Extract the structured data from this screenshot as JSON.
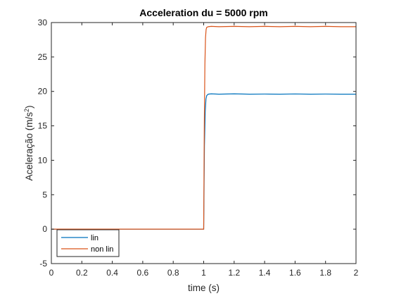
{
  "chart_data": {
    "type": "line",
    "title": "Acceleration du = 5000 rpm",
    "xlabel": "time (s)",
    "ylabel_prefix": "Aceleração (m/s",
    "ylabel_sup": "2",
    "ylabel_suffix": ")",
    "xlim": [
      0,
      2
    ],
    "ylim": [
      -5,
      30
    ],
    "xticks": [
      0,
      0.2,
      0.4,
      0.6,
      0.8,
      1,
      1.2,
      1.4,
      1.6,
      1.8,
      2
    ],
    "xtick_labels": [
      "0",
      "0.2",
      "0.4",
      "0.6",
      "0.8",
      "1",
      "1.2",
      "1.4",
      "1.6",
      "1.8",
      "2"
    ],
    "yticks": [
      -5,
      0,
      5,
      10,
      15,
      20,
      25,
      30
    ],
    "ytick_labels": [
      "-5",
      "0",
      "5",
      "10",
      "15",
      "20",
      "25",
      "30"
    ],
    "grid": false,
    "legend_position": "bottom-left",
    "series": [
      {
        "name": "lin",
        "color": "#0072BD",
        "x": [
          0,
          1.0,
          1.005,
          1.01,
          1.015,
          1.02,
          1.03,
          1.05,
          1.1,
          1.2,
          1.3,
          1.4,
          1.5,
          1.6,
          1.7,
          1.8,
          1.9,
          2.0
        ],
        "y": [
          0,
          0,
          12,
          17,
          18.9,
          19.4,
          19.6,
          19.65,
          19.6,
          19.65,
          19.6,
          19.62,
          19.6,
          19.63,
          19.6,
          19.62,
          19.6,
          19.6
        ]
      },
      {
        "name": "non lin",
        "color": "#D95319",
        "x": [
          0,
          1.0,
          1.004,
          1.008,
          1.012,
          1.016,
          1.02,
          1.03,
          1.05,
          1.1,
          1.2,
          1.3,
          1.4,
          1.5,
          1.6,
          1.7,
          1.8,
          1.9,
          2.0
        ],
        "y": [
          0,
          0,
          15,
          24,
          27.8,
          29.0,
          29.3,
          29.4,
          29.45,
          29.4,
          29.45,
          29.4,
          29.45,
          29.4,
          29.45,
          29.4,
          29.45,
          29.4,
          29.4
        ]
      }
    ]
  }
}
